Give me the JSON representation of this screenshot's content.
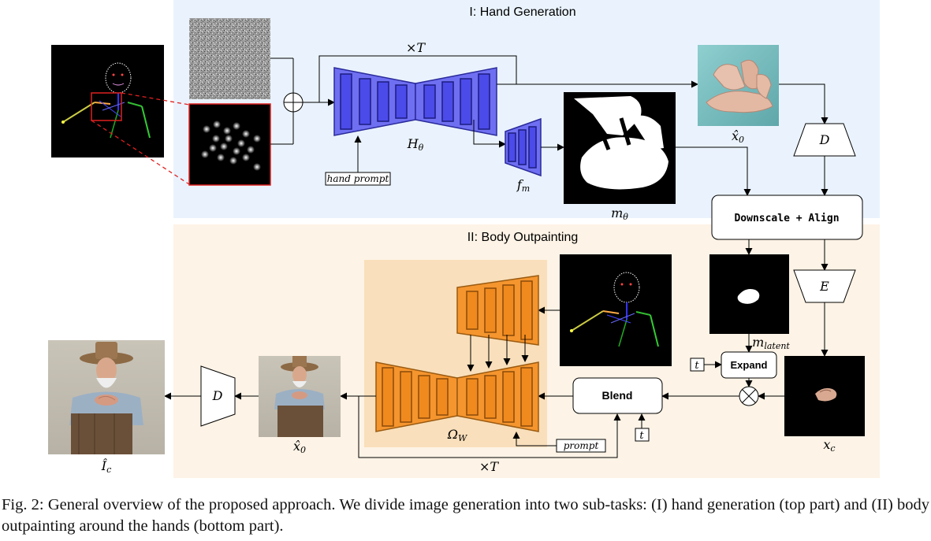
{
  "sections": {
    "hand_generation": "I: Hand Generation",
    "body_outpainting": "II: Body Outpainting"
  },
  "labels": {
    "times_T_top": "×T",
    "times_T_bottom": "×T",
    "H_theta": "Hθ",
    "f_m": "fm",
    "m_theta": "mθ",
    "x0_hat_top": "x̂0",
    "x0_hat_bottom": "x̂0",
    "D_top": "D",
    "D_bottom": "D",
    "E": "E",
    "m_latent": "mlatent",
    "x_c": "xc",
    "Omega_W": "ΩW",
    "I_c_hat": "Îc",
    "t_expand": "t",
    "t_blend": "t",
    "oplus": "⊕",
    "otimes": "⊗"
  },
  "boxes": {
    "hand_prompt": "hand prompt",
    "prompt": "prompt",
    "downscale_align": "Downscale + Align",
    "expand": "Expand",
    "blend": "Blend"
  },
  "caption": "Fig. 2: General overview of the proposed approach. We divide image generation into two sub-tasks: (I) hand generation (top part) and (II) body outpainting around the hands (bottom part).",
  "colors": {
    "section1_bg": "#eaf3fd",
    "section2_bg": "#fdf3e6",
    "omega_bg": "#f9dfbb",
    "h_theta_fill": "#6f6ff2",
    "unet_orange": "#f5952e",
    "red_highlight": "#e02020"
  }
}
